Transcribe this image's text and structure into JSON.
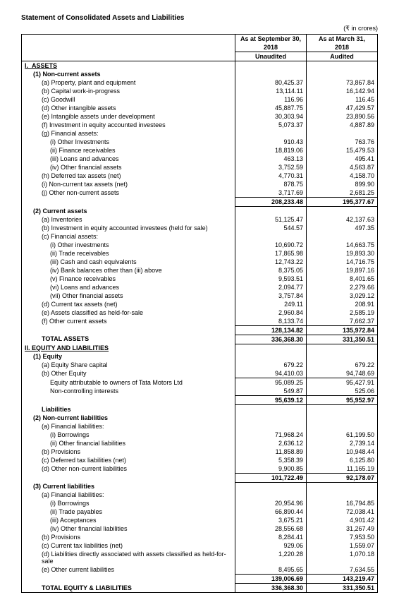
{
  "title": "Statement of Consolidated Assets and Liabilities",
  "currency_note": "(₹ in crores)",
  "headers": {
    "col1_line1": "As at September 30,",
    "col1_line2": "2018",
    "col1_line3": "Unaudited",
    "col2_line1": "As at March 31,",
    "col2_line2": "2018",
    "col2_line3": "Audited"
  },
  "sections": {
    "assets_label": "ASSETS",
    "noncurrent_assets_label": "Non-current assets",
    "ppe": {
      "label": "(a)  Property, plant and equipment",
      "v1": "80,425.37",
      "v2": "73,867.84"
    },
    "cwip": {
      "label": "(b)  Capital work-in-progress",
      "v1": "13,114.11",
      "v2": "16,142.94"
    },
    "goodwill": {
      "label": "(c)  Goodwill",
      "v1": "116.96",
      "v2": "116.45"
    },
    "intangible": {
      "label": "(d)  Other intangible assets",
      "v1": "45,887.75",
      "v2": "47,429.57"
    },
    "intdev": {
      "label": "(e)  Intangible assets under development",
      "v1": "30,303.94",
      "v2": "23,890.56"
    },
    "inveq": {
      "label": "(f)  Investment in equity accounted investees",
      "v1": "5,073.37",
      "v2": "4,887.89"
    },
    "finassets_label": "(g)  Financial assets:",
    "otherinv": {
      "label": "(i)  Other Investments",
      "v1": "910.43",
      "v2": "763.76"
    },
    "finrec": {
      "label": "(ii)  Finance receivables",
      "v1": "18,819.06",
      "v2": "15,479.53"
    },
    "loans": {
      "label": "(iii)  Loans and advances",
      "v1": "463.13",
      "v2": "495.41"
    },
    "otherfin": {
      "label": "(iv)  Other financial assets",
      "v1": "3,752.59",
      "v2": "4,563.87"
    },
    "deftax": {
      "label": "(h)  Deferred tax assets (net)",
      "v1": "4,770.31",
      "v2": "4,158.70"
    },
    "nctax": {
      "label": "(i)  Non-current tax assets (net)",
      "v1": "878.75",
      "v2": "899.90"
    },
    "othernc": {
      "label": "(j)  Other non-current assets",
      "v1": "3,717.69",
      "v2": "2,681.25"
    },
    "nc_subtotal": {
      "v1": "208,233.48",
      "v2": "195,377.67"
    },
    "current_assets_label": "Current assets",
    "inventories": {
      "label": "(a)  Inventories",
      "v1": "51,125.47",
      "v2": "42,137.63"
    },
    "inveqheld": {
      "label": "(b)  Investment in equity accounted investees (held for sale)",
      "v1": "544.57",
      "v2": "497.35"
    },
    "cfinassets_label": "(c)  Financial assets:",
    "c_otherinv": {
      "label": "(i)  Other investments",
      "v1": "10,690.72",
      "v2": "14,663.75"
    },
    "traderec": {
      "label": "(ii)  Trade receivables",
      "v1": "17,865.98",
      "v2": "19,893.30"
    },
    "cash": {
      "label": "(iii)  Cash and cash equivalents",
      "v1": "12,743.22",
      "v2": "14,716.75"
    },
    "bankbal": {
      "label": "(iv)  Bank balances other than (iii) above",
      "v1": "8,375.05",
      "v2": "19,897.16"
    },
    "cfinrec": {
      "label": "(v)  Finance receivables",
      "v1": "9,593.51",
      "v2": "8,401.65"
    },
    "cloans": {
      "label": "(vi)  Loans and advances",
      "v1": "2,094.77",
      "v2": "2,279.66"
    },
    "cotherfin": {
      "label": "(vii) Other financial assets",
      "v1": "3,757.84",
      "v2": "3,029.12"
    },
    "ctax": {
      "label": "(d)  Current tax assets (net)",
      "v1": "249.11",
      "v2": "208.91"
    },
    "hfs": {
      "label": "(e)  Assets classified as held-for-sale",
      "v1": "2,960.84",
      "v2": "2,585.19"
    },
    "otherc": {
      "label": "(f)  Other current assets",
      "v1": "8,133.74",
      "v2": "7,662.37"
    },
    "c_subtotal": {
      "v1": "128,134.82",
      "v2": "135,972.84"
    },
    "total_assets": {
      "label": "TOTAL ASSETS",
      "v1": "336,368.30",
      "v2": "331,350.51"
    },
    "eql_label": "EQUITY AND LIABILITIES",
    "equity_label": "Equity",
    "share": {
      "label": "(a)  Equity Share capital",
      "v1": "679.22",
      "v2": "679.22"
    },
    "othereq": {
      "label": "(b)  Other Equity",
      "v1": "94,410.03",
      "v2": "94,748.69"
    },
    "eqattr": {
      "label": "Equity attributable to owners of Tata Motors Ltd",
      "v1": "95,089.25",
      "v2": "95,427.91"
    },
    "nci": {
      "label": "Non-controlling interests",
      "v1": "549.87",
      "v2": "525.06"
    },
    "eq_subtotal": {
      "v1": "95,639.12",
      "v2": "95,952.97"
    },
    "liab_label": "Liabilities",
    "ncliab_label": "Non-current liabilities",
    "ncfinliab_label": "(a)  Financial liabilities:",
    "ncborrow": {
      "label": "(i)  Borrowings",
      "v1": "71,968.24",
      "v2": "61,199.50"
    },
    "ncotherfinliab": {
      "label": "(ii)  Other financial liabilities",
      "v1": "2,636.12",
      "v2": "2,739.14"
    },
    "ncprov": {
      "label": "(b)  Provisions",
      "v1": "11,858.89",
      "v2": "10,948.44"
    },
    "ncdeftax": {
      "label": "(c)  Deferred tax liabilities (net)",
      "v1": "5,358.39",
      "v2": "6,125.80"
    },
    "ncother": {
      "label": "(d)  Other non-current liabilities",
      "v1": "9,900.85",
      "v2": "11,165.19"
    },
    "ncliab_subtotal": {
      "v1": "101,722.49",
      "v2": "92,178.07"
    },
    "cliab_label": "Current liabilities",
    "cfinliab_label": "(a)  Financial liabilities:",
    "cborrow": {
      "label": "(i)  Borrowings",
      "v1": "20,954.96",
      "v2": "16,794.85"
    },
    "tradepay": {
      "label": "(ii)  Trade payables",
      "v1": "66,890.44",
      "v2": "72,038.41"
    },
    "accept": {
      "label": "(iii)  Acceptances",
      "v1": "3,675.21",
      "v2": "4,901.42"
    },
    "cotherfinliab": {
      "label": "(iv)  Other financial liabilities",
      "v1": "28,556.68",
      "v2": "31,267.49"
    },
    "cprov": {
      "label": "(b)  Provisions",
      "v1": "8,284.41",
      "v2": "7,953.50"
    },
    "ctaxliab": {
      "label": "(c)  Current tax liabilities (net)",
      "v1": "929.06",
      "v2": "1,559.07"
    },
    "liabhfs": {
      "label": "(d)  Liabilities directly associated with assets classified as held-for-sale",
      "v1": "1,220.28",
      "v2": "1,070.18"
    },
    "othercliab": {
      "label": "(e)  Other current liabilities",
      "v1": "8,495.65",
      "v2": "7,634.55"
    },
    "cliab_subtotal": {
      "v1": "139,006.69",
      "v2": "143,219.47"
    },
    "total_eql": {
      "label": "TOTAL EQUITY & LIABILITIES",
      "v1": "336,368.30",
      "v2": "331,350.51"
    }
  }
}
